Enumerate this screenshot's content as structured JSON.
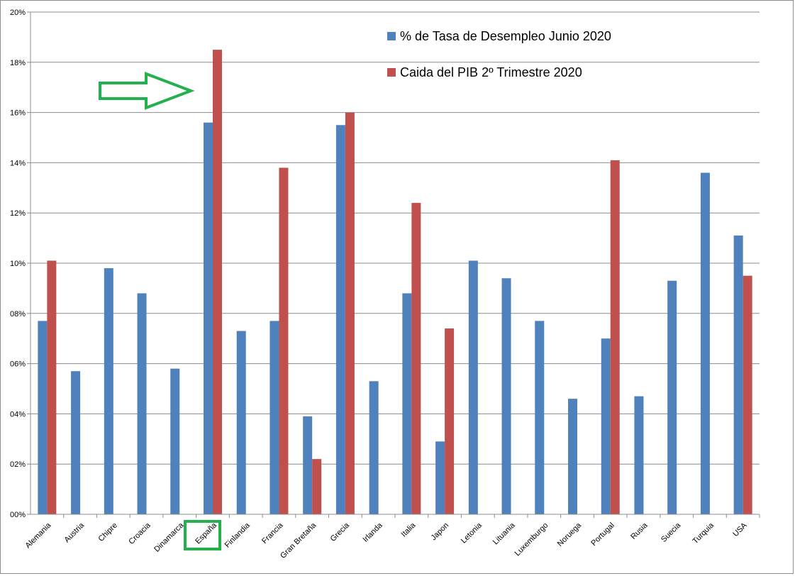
{
  "chart_data": {
    "type": "bar",
    "categories": [
      "Alemania",
      "Austria",
      "Chipre",
      "Croacia",
      "Dinamarca",
      "España",
      "Finlandia",
      "Francia",
      "Gran Bretaña",
      "Grecia",
      "Irlanda",
      "Italia",
      "Japon",
      "Letonia",
      "Lituania",
      "Luxemburgo",
      "Noruega",
      "Portugal",
      "Rusia",
      "Suecia",
      "Turquia",
      "USA"
    ],
    "series": [
      {
        "name": "% de Tasa de Desempleo Junio 2020",
        "color": "#4f81bd",
        "values": [
          7.7,
          5.7,
          9.8,
          8.8,
          5.8,
          15.6,
          7.3,
          7.7,
          3.9,
          15.5,
          5.3,
          8.8,
          2.9,
          10.1,
          9.4,
          7.7,
          4.6,
          7.0,
          4.7,
          9.3,
          13.6,
          11.1
        ]
      },
      {
        "name": "Caida del PIB 2º Trimestre 2020",
        "color": "#c0504d",
        "values": [
          10.1,
          null,
          null,
          null,
          null,
          18.5,
          null,
          13.8,
          2.2,
          16.0,
          null,
          12.4,
          7.4,
          null,
          null,
          null,
          null,
          14.1,
          null,
          null,
          null,
          9.5
        ]
      }
    ],
    "y_ticks": [
      "00%",
      "02%",
      "04%",
      "06%",
      "08%",
      "10%",
      "12%",
      "14%",
      "16%",
      "18%",
      "20%"
    ],
    "ylim": [
      0,
      20
    ],
    "grid": true,
    "legend_position": "top-right",
    "highlight": {
      "category": "España",
      "color": "#22b14c"
    }
  }
}
